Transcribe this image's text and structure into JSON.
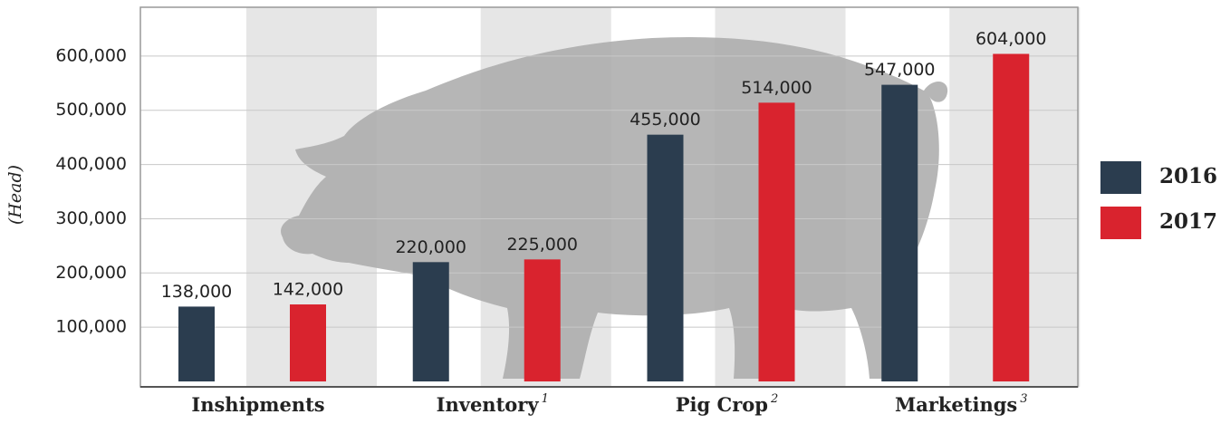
{
  "chart_data": {
    "type": "bar",
    "y_label": "(Head)",
    "categories": [
      "Inshipments",
      "Inventory",
      "Pig Crop",
      "Marketings"
    ],
    "footnotes": [
      null,
      "1",
      "2",
      "3"
    ],
    "series": [
      {
        "name": "2016",
        "color": "#2b3d4f",
        "values": [
          138000,
          220000,
          455000,
          547000
        ],
        "value_labels": [
          "138,000",
          "220,000",
          "455,000",
          "547,000"
        ]
      },
      {
        "name": "2017",
        "color": "#d9232e",
        "values": [
          142000,
          225000,
          514000,
          604000
        ],
        "value_labels": [
          "142,000",
          "225,000",
          "514,000",
          "604,000"
        ]
      }
    ],
    "ylim": [
      -10000,
      690000
    ],
    "yticks": [
      {
        "value": 100000,
        "label": "100,000"
      },
      {
        "value": 200000,
        "label": "200,000"
      },
      {
        "value": 300000,
        "label": "300,000"
      },
      {
        "value": 400000,
        "label": "400,000"
      },
      {
        "value": 500000,
        "label": "500,000"
      },
      {
        "value": 600000,
        "label": "600,000"
      }
    ],
    "grid": true
  }
}
